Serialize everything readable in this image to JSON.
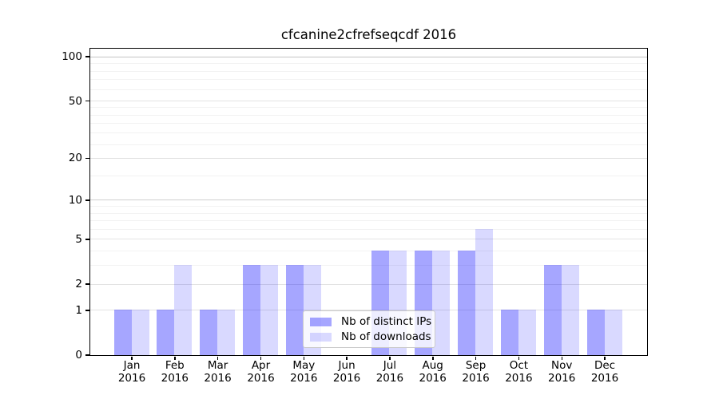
{
  "chart_data": {
    "type": "bar",
    "title": "cfcanine2cfrefseqcdf 2016",
    "categories": [
      "Jan 2016",
      "Feb 2016",
      "Mar 2016",
      "Apr 2016",
      "May 2016",
      "Jun 2016",
      "Jul 2016",
      "Aug 2016",
      "Sep 2016",
      "Oct 2016",
      "Nov 2016",
      "Dec 2016"
    ],
    "x_tick_line1": [
      "Jan",
      "Feb",
      "Mar",
      "Apr",
      "May",
      "Jun",
      "Jul",
      "Aug",
      "Sep",
      "Oct",
      "Nov",
      "Dec"
    ],
    "x_tick_line2": [
      "2016",
      "2016",
      "2016",
      "2016",
      "2016",
      "2016",
      "2016",
      "2016",
      "2016",
      "2016",
      "2016",
      "2016"
    ],
    "series": [
      {
        "name": "Nb of distinct IPs",
        "color": "rgba(0,0,255,0.35)",
        "values": [
          1,
          1,
          1,
          3,
          3,
          0,
          4,
          4,
          4,
          1,
          3,
          1
        ]
      },
      {
        "name": "Nb of downloads",
        "color": "rgba(0,0,255,0.15)",
        "values": [
          1,
          3,
          1,
          3,
          3,
          0,
          4,
          4,
          6,
          1,
          3,
          1
        ]
      }
    ],
    "yscale": "log10(1+y)",
    "ylim": [
      0,
      113.5
    ],
    "y_major_ticks": [
      0,
      1,
      2,
      5,
      10,
      20,
      50,
      100
    ],
    "y_minor_gridlines": [
      3,
      4,
      6,
      7,
      8,
      9,
      15,
      25,
      30,
      35,
      40,
      45,
      60,
      70,
      80,
      90
    ],
    "xlabel": "",
    "ylabel": "",
    "grid": "on",
    "legend_position": "lower center",
    "colors": {
      "grid_major": "#e3e3e3",
      "grid_minor": "#f2f2f2",
      "grid_decade": "#c4c4c4",
      "axis": "#000000"
    }
  }
}
